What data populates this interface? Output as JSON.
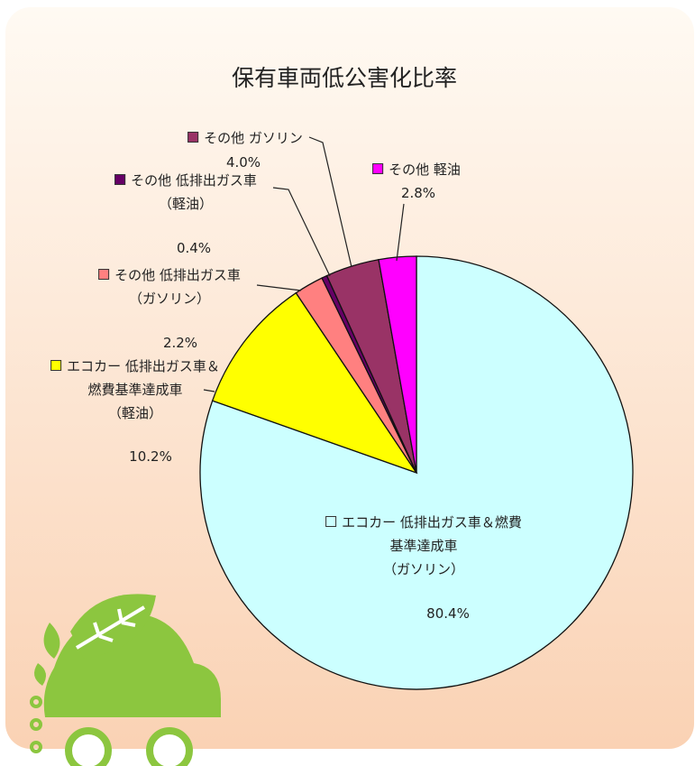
{
  "chart_data": {
    "type": "pie",
    "title": "保有車両低公害化比率",
    "categories": [
      "エコカー 低排出ガス車＆燃費\n基準達成車\n（ガソリン）",
      "エコカー 低排出ガス車＆\n燃費基準達成車\n（軽油）",
      "その他 低排出ガス車\n（ガソリン）",
      "その他 低排出ガス車\n（軽油）",
      "その他 ガソリン",
      "その他 軽油"
    ],
    "values": [
      80.4,
      10.2,
      2.2,
      0.4,
      4.0,
      2.8
    ],
    "value_labels": [
      "80.4%",
      "10.2%",
      "2.2%",
      "0.4%",
      "4.0%",
      "2.8%"
    ],
    "colors": [
      "#ccffff",
      "#ffff00",
      "#ff8080",
      "#660066",
      "#993366",
      "#ff00ff"
    ]
  }
}
